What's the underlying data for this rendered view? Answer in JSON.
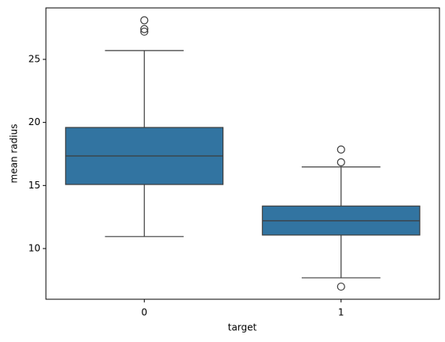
{
  "chart_data": {
    "type": "box",
    "x_label": "target",
    "y_label": "mean radius",
    "categories": [
      "0",
      "1"
    ],
    "color": "#3274a1",
    "boxes": [
      {
        "whislo": 10.95,
        "q1": 15.08,
        "med": 17.34,
        "q3": 19.6,
        "whishi": 25.7,
        "fliers": [
          28.1,
          27.4,
          27.2
        ]
      },
      {
        "whislo": 7.68,
        "q1": 11.07,
        "med": 12.2,
        "q3": 13.37,
        "whishi": 16.47,
        "fliers": [
          17.85,
          16.84,
          6.98
        ]
      }
    ],
    "ylim": [
      5.98,
      29.08
    ],
    "yticks": [
      10,
      15,
      20,
      25
    ]
  }
}
